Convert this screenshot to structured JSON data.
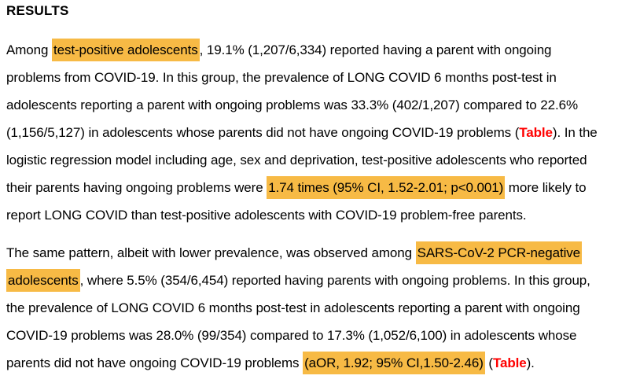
{
  "heading": {
    "text": "RESULTS"
  },
  "colors": {
    "highlight": "#F7BA45",
    "table_link": "#FF0000",
    "text": "#000000",
    "background": "#ffffff"
  },
  "paragraphs": [
    {
      "lines": [
        [
          {
            "text": "Among ",
            "style": "normal"
          },
          {
            "text": "test-positive adolescents",
            "style": "highlight"
          },
          {
            "text": ", 19.1% (1,207/6,334) reported having a parent with ongoing",
            "style": "normal"
          }
        ],
        [
          {
            "text": "problems from COVID-19. In this group, the prevalence of LONG COVID 6 months post-test in",
            "style": "normal"
          }
        ],
        [
          {
            "text": "adolescents reporting a parent with ongoing problems was 33.3% (402/1,207) compared to 22.6%",
            "style": "normal"
          }
        ],
        [
          {
            "text": "(1,156/5,127) in adolescents whose parents did not have ongoing COVID-19 problems (",
            "style": "normal"
          },
          {
            "text": "Table",
            "style": "table-link"
          },
          {
            "text": "). In the",
            "style": "normal"
          }
        ],
        [
          {
            "text": "logistic regression model including age, sex and deprivation, test-positive adolescents who reported",
            "style": "normal"
          }
        ],
        [
          {
            "text": "their parents having ongoing problems were ",
            "style": "normal"
          },
          {
            "text": "1.74 times (95% CI, 1.52-2.01; p<0.001)",
            "style": "highlight"
          },
          {
            "text": " more likely to",
            "style": "normal"
          }
        ],
        [
          {
            "text": "report LONG COVID than test-positive adolescents with COVID-19 problem-free parents.",
            "style": "normal"
          }
        ]
      ]
    },
    {
      "lines": [
        [
          {
            "text": "The same pattern, albeit with lower prevalence, was observed among ",
            "style": "normal"
          },
          {
            "text": "SARS-CoV-2 PCR-negative",
            "style": "highlight"
          }
        ],
        [
          {
            "text": "adolescents",
            "style": "highlight"
          },
          {
            "text": ", where 5.5% (354/6,454) reported having parents with ongoing problems. In this group,",
            "style": "normal"
          }
        ],
        [
          {
            "text": "the prevalence of LONG COVID 6 months post-test in adolescents reporting a parent with ongoing",
            "style": "normal"
          }
        ],
        [
          {
            "text": "COVID-19 problems was 28.0% (99/354) compared to 17.3% (1,052/6,100) in adolescents whose",
            "style": "normal"
          }
        ],
        [
          {
            "text": "parents did not have ongoing COVID-19 problems ",
            "style": "normal"
          },
          {
            "text": "(aOR, 1.92; 95% CI,1.50-2.46)",
            "style": "highlight"
          },
          {
            "text": " (",
            "style": "normal"
          },
          {
            "text": "Table",
            "style": "table-link"
          },
          {
            "text": ").",
            "style": "normal"
          }
        ]
      ]
    }
  ]
}
